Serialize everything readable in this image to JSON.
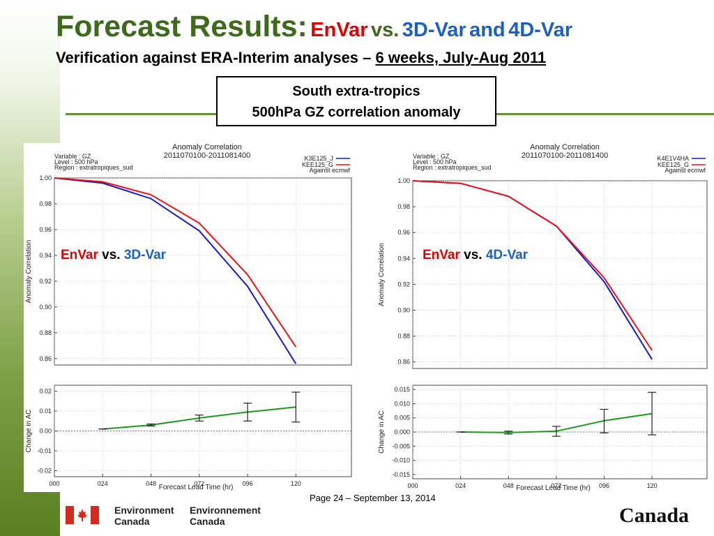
{
  "title": {
    "main": "Forecast Results:",
    "envar": "EnVar",
    "vs": "vs.",
    "threedvar": "3D-Var",
    "and": "and",
    "fourdvar": "4D-Var"
  },
  "subtitle": {
    "lead": "Verification against ERA-Interim analyses – ",
    "underlined": "6 weeks, July-Aug 2011"
  },
  "box": {
    "line1": "South extra-tropics",
    "line2": "500hPa GZ correlation anomaly"
  },
  "overlays": {
    "left": {
      "a": "EnVar",
      "vs": "vs.",
      "b": "3D-Var"
    },
    "right": {
      "a": "EnVar",
      "vs": "vs.",
      "b": "4D-Var"
    }
  },
  "footer": {
    "page": "Page 24 – September 13, 2014",
    "dept_en_1": "Environment",
    "dept_en_2": "Canada",
    "dept_fr_1": "Environnement",
    "dept_fr_2": "Canada",
    "wordmark": "Canada"
  },
  "colors": {
    "title_green": "#3e6a1b",
    "envar_red": "#e00000",
    "var_blue": "#1a60c8",
    "series_red": "#ee1111",
    "series_blue": "#1818d0",
    "diff_green": "#1a9a1a",
    "flag_red": "#d52b1e"
  },
  "chart_data": [
    {
      "type": "line",
      "title": "Anomaly Correlation",
      "subtitle": "2011070100-2011081400",
      "info": [
        "Variable : GZ",
        "Level : 500 hPa",
        "Region : extratropiques_sud"
      ],
      "legend_note": "Against ecmwf",
      "x": [
        "000",
        "024",
        "048",
        "072",
        "096",
        "120"
      ],
      "xlabel": "Forecast Lead Time (hr)",
      "ylabel": "Anomaly Correlation",
      "ylim": [
        0.855,
        1.0
      ],
      "yticks": [
        "1.00",
        "0.98",
        "0.96",
        "0.94",
        "0.92",
        "0.90",
        "0.88",
        "0.86"
      ],
      "series": [
        {
          "name": "K3E125_J",
          "color": "#1818d0",
          "values": [
            1.0,
            0.996,
            0.984,
            0.959,
            0.916,
            0.856
          ]
        },
        {
          "name": "KEE125_G",
          "color": "#ee1111",
          "values": [
            1.0,
            0.997,
            0.987,
            0.965,
            0.925,
            0.869
          ]
        }
      ],
      "diff": {
        "ylabel": "Change in AC",
        "ylim": [
          -0.023,
          0.023
        ],
        "yticks": [
          "0.02",
          "0.01",
          "0.00",
          "-0.01",
          "-0.02"
        ],
        "x": [
          "024",
          "048",
          "072",
          "096",
          "120"
        ],
        "values": [
          0.001,
          0.003,
          0.0065,
          0.0095,
          0.012
        ],
        "err_low": [
          0.001,
          0.0025,
          0.005,
          0.005,
          0.0045
        ],
        "err_high": [
          0.001,
          0.0035,
          0.008,
          0.014,
          0.0195
        ]
      }
    },
    {
      "type": "line",
      "title": "Anomaly Correlation",
      "subtitle": "2011070100-2011081400",
      "info": [
        "Variable : GZ",
        "Level : 500 hPa",
        "Region : extratropiques_sud"
      ],
      "legend_note": "Against ecmwf",
      "x": [
        "000",
        "024",
        "048",
        "072",
        "096",
        "120"
      ],
      "xlabel": "Forecast Lead Time (hr)",
      "ylabel": "Anomaly Correlation",
      "ylim": [
        0.855,
        1.0
      ],
      "yticks": [
        "1.00",
        "0.98",
        "0.96",
        "0.94",
        "0.92",
        "0.90",
        "0.88",
        "0.86"
      ],
      "series": [
        {
          "name": "K4E1V4HA",
          "color": "#1818d0",
          "values": [
            1.0,
            0.998,
            0.988,
            0.965,
            0.922,
            0.862
          ]
        },
        {
          "name": "KEE125_G",
          "color": "#ee1111",
          "values": [
            1.0,
            0.998,
            0.988,
            0.965,
            0.925,
            0.869
          ]
        }
      ],
      "diff": {
        "ylabel": "Change in AC",
        "ylim": [
          -0.0165,
          0.0165
        ],
        "yticks": [
          "0.015",
          "0.010",
          "0.005",
          "0.000",
          "-0.005",
          "-0.010",
          "-0.015"
        ],
        "x": [
          "024",
          "048",
          "072",
          "096",
          "120"
        ],
        "values": [
          0.0,
          -0.0002,
          0.0003,
          0.004,
          0.0065
        ],
        "err_low": [
          0.0,
          -0.0007,
          -0.0015,
          -0.0003,
          -0.001
        ],
        "err_high": [
          0.0,
          0.0003,
          0.002,
          0.008,
          0.014
        ]
      }
    }
  ]
}
